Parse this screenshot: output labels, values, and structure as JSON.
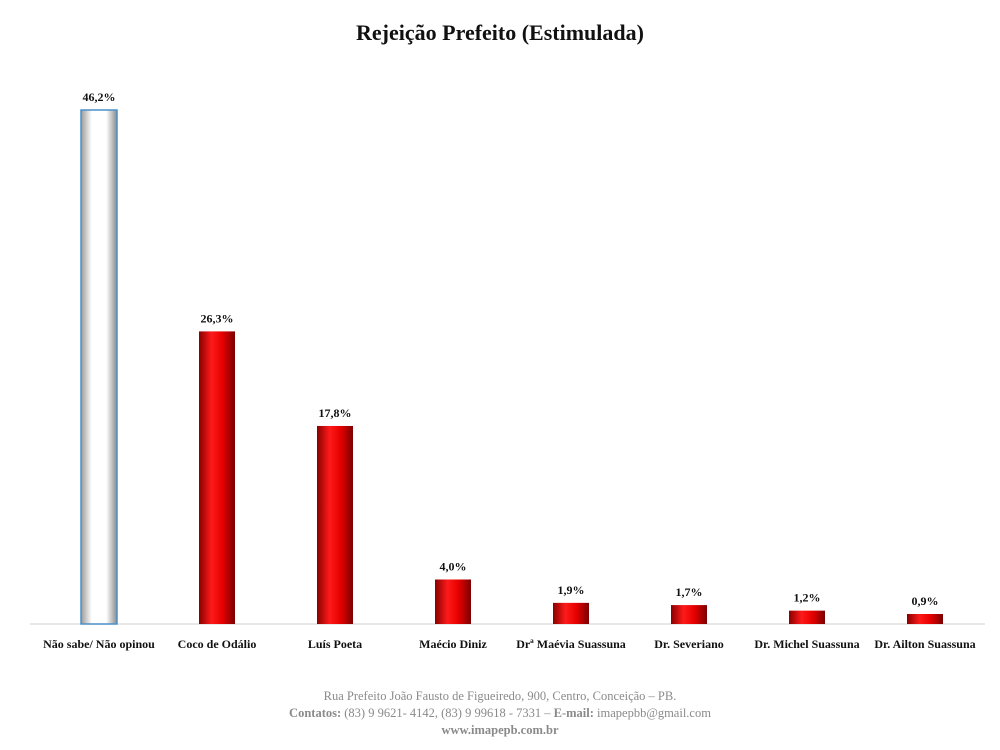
{
  "chart_data": {
    "type": "bar",
    "title": "Rejeição Prefeito (Estimulada)",
    "categories": [
      "Não sabe/ Não opinou",
      "Coco de Odálio",
      "Luís Poeta",
      "Maécio Diniz",
      "Drª Maévia Suassuna",
      "Dr. Severiano",
      "Dr. Michel Suassuna",
      "Dr. Ailton Suassuna"
    ],
    "values": [
      46.2,
      26.3,
      17.8,
      4.0,
      1.9,
      1.7,
      1.2,
      0.9
    ],
    "value_labels": [
      "46,2%",
      "26,3%",
      "17,8%",
      "4,0%",
      "1,9%",
      "1,7%",
      "1,2%",
      "0,9%"
    ],
    "ylim": [
      0,
      46.2
    ],
    "grid": false,
    "legend": "none",
    "colors": {
      "first_bar": "#ffffff",
      "first_bar_border": "#4a90c8",
      "bars": "#e00000"
    }
  },
  "footer": {
    "address": "Rua Prefeito João Fausto de Figueiredo, 900, Centro, Conceição – PB.",
    "contacts_label": "Contatos:",
    "contacts_phones": " (83) 9 9621- 4142, (83) 9 99618 - 7331 – ",
    "email_label": "E-mail:",
    "email": " imapepbb@gmail.com",
    "website": "www.imapepb.com.br"
  }
}
